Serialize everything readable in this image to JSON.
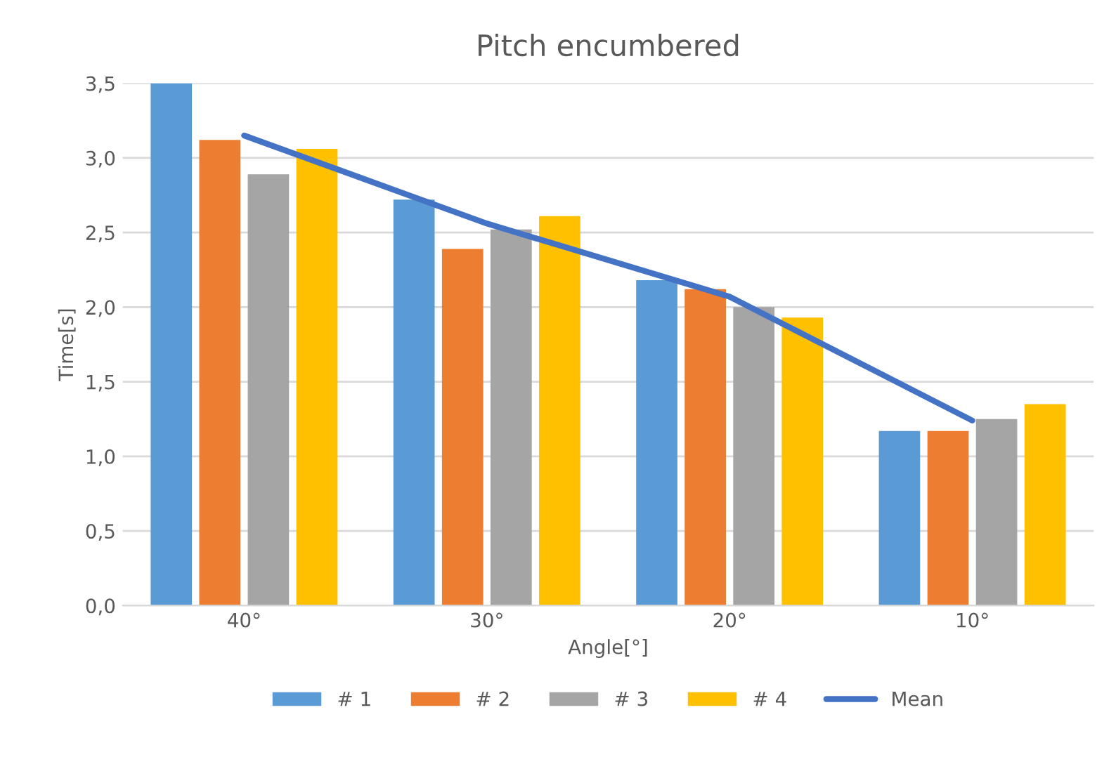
{
  "chart_data": {
    "type": "bar",
    "title": "Pitch encumbered",
    "xlabel": "Angle[°]",
    "ylabel": "Time[s]",
    "categories": [
      "40°",
      "30°",
      "20°",
      "10°"
    ],
    "series": [
      {
        "name": "# 1",
        "color": "#5b9bd5",
        "values": [
          3.5,
          2.72,
          2.18,
          1.17
        ]
      },
      {
        "name": "# 2",
        "color": "#ed7d31",
        "values": [
          3.12,
          2.39,
          2.12,
          1.17
        ]
      },
      {
        "name": "# 3",
        "color": "#a5a5a5",
        "values": [
          2.89,
          2.52,
          2.0,
          1.25
        ]
      },
      {
        "name": "# 4",
        "color": "#ffc000",
        "values": [
          3.06,
          2.61,
          1.93,
          1.35
        ]
      },
      {
        "name": "Mean",
        "type": "line",
        "color": "#4472c4",
        "values": [
          3.15,
          2.56,
          2.07,
          1.24
        ]
      }
    ],
    "ylim": [
      0,
      3.5
    ],
    "yticks": [
      {
        "value": 0,
        "label": "0,0"
      },
      {
        "value": 0.5,
        "label": "0,5"
      },
      {
        "value": 1,
        "label": "1,0"
      },
      {
        "value": 1.5,
        "label": "1,5"
      },
      {
        "value": 2,
        "label": "2,0"
      },
      {
        "value": 2.5,
        "label": "2,5"
      },
      {
        "value": 3,
        "label": "3,0"
      },
      {
        "value": 3.5,
        "label": "3,5"
      }
    ],
    "grid": "y",
    "legend": "bottom"
  }
}
